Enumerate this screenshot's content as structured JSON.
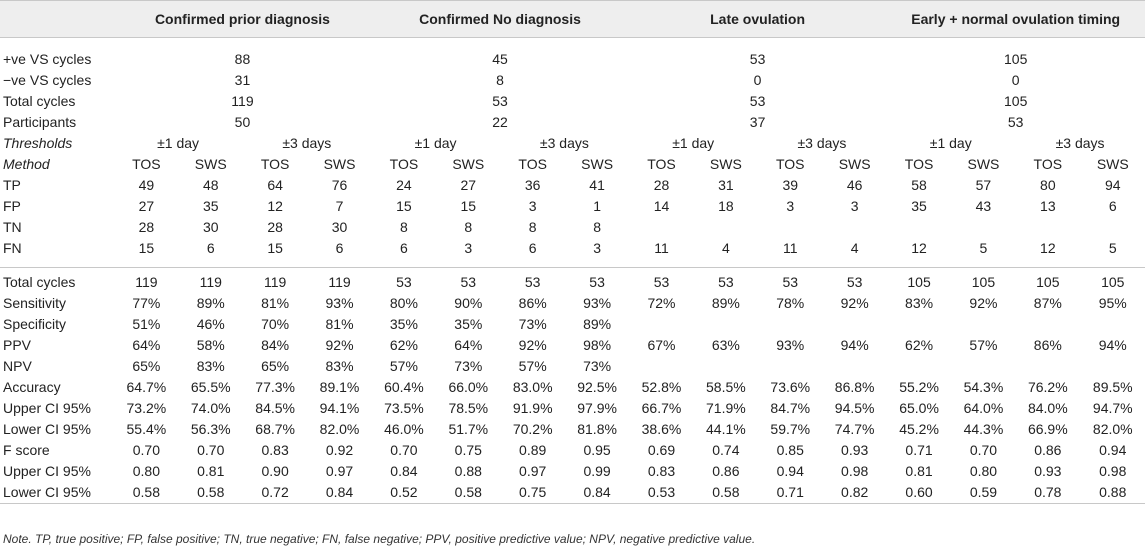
{
  "groups": [
    "Confirmed prior diagnosis",
    "Confirmed No diagnosis",
    "Late ovulation",
    "Early + normal ovulation timing"
  ],
  "summary_rows": [
    {
      "label": "+ve VS cycles",
      "values": [
        "88",
        "45",
        "53",
        "105"
      ]
    },
    {
      "label": "−ve VS cycles",
      "values": [
        "31",
        "8",
        "0",
        "0"
      ]
    },
    {
      "label": "Total cycles",
      "values": [
        "119",
        "53",
        "53",
        "105"
      ]
    },
    {
      "label": "Participants",
      "values": [
        "50",
        "22",
        "37",
        "53"
      ]
    }
  ],
  "thresholds_label": "Thresholds",
  "thresholds": [
    "±1 day",
    "±3 days",
    "±1 day",
    "±3 days",
    "±1 day",
    "±3 days",
    "±1 day",
    "±3 days"
  ],
  "method_label": "Method",
  "methods": [
    "TOS",
    "SWS",
    "TOS",
    "SWS",
    "TOS",
    "SWS",
    "TOS",
    "SWS",
    "TOS",
    "SWS",
    "TOS",
    "SWS",
    "TOS",
    "SWS",
    "TOS",
    "SWS"
  ],
  "counts_rows": [
    {
      "label": "TP",
      "values": [
        "49",
        "48",
        "64",
        "76",
        "24",
        "27",
        "36",
        "41",
        "28",
        "31",
        "39",
        "46",
        "58",
        "57",
        "80",
        "94"
      ]
    },
    {
      "label": "FP",
      "values": [
        "27",
        "35",
        "12",
        "7",
        "15",
        "15",
        "3",
        "1",
        "14",
        "18",
        "3",
        "3",
        "35",
        "43",
        "13",
        "6"
      ]
    },
    {
      "label": "TN",
      "values": [
        "28",
        "30",
        "28",
        "30",
        "8",
        "8",
        "8",
        "8",
        "",
        "",
        "",
        "",
        "",
        "",
        "",
        ""
      ]
    },
    {
      "label": "FN",
      "values": [
        "15",
        "6",
        "15",
        "6",
        "6",
        "3",
        "6",
        "3",
        "11",
        "4",
        "11",
        "4",
        "12",
        "5",
        "12",
        "5"
      ]
    }
  ],
  "metric_rows": [
    {
      "label": "Total cycles",
      "values": [
        "119",
        "119",
        "119",
        "119",
        "53",
        "53",
        "53",
        "53",
        "53",
        "53",
        "53",
        "53",
        "105",
        "105",
        "105",
        "105"
      ]
    },
    {
      "label": "Sensitivity",
      "values": [
        "77%",
        "89%",
        "81%",
        "93%",
        "80%",
        "90%",
        "86%",
        "93%",
        "72%",
        "89%",
        "78%",
        "92%",
        "83%",
        "92%",
        "87%",
        "95%"
      ]
    },
    {
      "label": "Specificity",
      "values": [
        "51%",
        "46%",
        "70%",
        "81%",
        "35%",
        "35%",
        "73%",
        "89%",
        "",
        "",
        "",
        "",
        "",
        "",
        "",
        ""
      ]
    },
    {
      "label": "PPV",
      "values": [
        "64%",
        "58%",
        "84%",
        "92%",
        "62%",
        "64%",
        "92%",
        "98%",
        "67%",
        "63%",
        "93%",
        "94%",
        "62%",
        "57%",
        "86%",
        "94%"
      ]
    },
    {
      "label": "NPV",
      "values": [
        "65%",
        "83%",
        "65%",
        "83%",
        "57%",
        "73%",
        "57%",
        "73%",
        "",
        "",
        "",
        "",
        "",
        "",
        "",
        ""
      ]
    },
    {
      "label": "Accuracy",
      "values": [
        "64.7%",
        "65.5%",
        "77.3%",
        "89.1%",
        "60.4%",
        "66.0%",
        "83.0%",
        "92.5%",
        "52.8%",
        "58.5%",
        "73.6%",
        "86.8%",
        "55.2%",
        "54.3%",
        "76.2%",
        "89.5%"
      ]
    },
    {
      "label": "Upper CI 95%",
      "values": [
        "73.2%",
        "74.0%",
        "84.5%",
        "94.1%",
        "73.5%",
        "78.5%",
        "91.9%",
        "97.9%",
        "66.7%",
        "71.9%",
        "84.7%",
        "94.5%",
        "65.0%",
        "64.0%",
        "84.0%",
        "94.7%"
      ]
    },
    {
      "label": "Lower CI 95%",
      "values": [
        "55.4%",
        "56.3%",
        "68.7%",
        "82.0%",
        "46.0%",
        "51.7%",
        "70.2%",
        "81.8%",
        "38.6%",
        "44.1%",
        "59.7%",
        "74.7%",
        "45.2%",
        "44.3%",
        "66.9%",
        "82.0%"
      ]
    },
    {
      "label": "F score",
      "values": [
        "0.70",
        "0.70",
        "0.83",
        "0.92",
        "0.70",
        "0.75",
        "0.89",
        "0.95",
        "0.69",
        "0.74",
        "0.85",
        "0.93",
        "0.71",
        "0.70",
        "0.86",
        "0.94"
      ]
    },
    {
      "label": "Upper CI 95%",
      "values": [
        "0.80",
        "0.81",
        "0.90",
        "0.97",
        "0.84",
        "0.88",
        "0.97",
        "0.99",
        "0.83",
        "0.86",
        "0.94",
        "0.98",
        "0.81",
        "0.80",
        "0.93",
        "0.98"
      ]
    },
    {
      "label": "Lower CI 95%",
      "values": [
        "0.58",
        "0.58",
        "0.72",
        "0.84",
        "0.52",
        "0.58",
        "0.75",
        "0.84",
        "0.53",
        "0.58",
        "0.71",
        "0.82",
        "0.60",
        "0.59",
        "0.78",
        "0.88"
      ]
    }
  ],
  "note": "Note. TP, true positive; FP, false positive; TN, true negative; FN, false negative; PPV, positive predictive value; NPV, negative predictive value."
}
